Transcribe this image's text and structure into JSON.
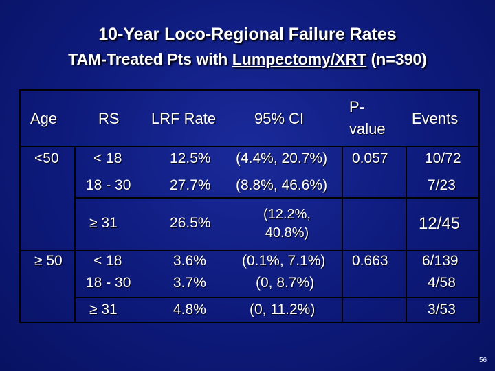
{
  "title": {
    "line1": "10-Year Loco-Regional Failure Rates",
    "line2_prefix": "TAM-Treated Pts with ",
    "line2_underlined": "Lumpectomy/XRT",
    "line2_suffix": " (n=390)"
  },
  "table": {
    "headers": {
      "age": "Age",
      "rs": "RS",
      "lrf_rate": "LRF Rate",
      "ci": "95% CI",
      "p_value_line1": "P-",
      "p_value_line2": "value",
      "events": "Events"
    },
    "groups": [
      {
        "age": "<50",
        "p_value": "0.057",
        "rows": [
          {
            "rs": "< 18",
            "lrf_rate": "12.5%",
            "ci": "(4.4%, 20.7%)",
            "events": "10/72"
          },
          {
            "rs": "18 - 30",
            "lrf_rate": "27.7%",
            "ci": "(8.8%, 46.6%)",
            "events": "7/23"
          },
          {
            "rs": "≥ 31",
            "lrf_rate": "26.5%",
            "ci_line1": "(12.2%,",
            "ci_line2": "40.8%)",
            "events": "12/45"
          }
        ]
      },
      {
        "age": "≥ 50",
        "p_value": "0.663",
        "rows": [
          {
            "rs": "< 18",
            "lrf_rate": "3.6%",
            "ci": "(0.1%, 7.1%)",
            "events": "6/139"
          },
          {
            "rs": "18 - 30",
            "lrf_rate": "3.7%",
            "ci": "(0, 8.7%)",
            "events": "4/58"
          },
          {
            "rs": "≥ 31",
            "lrf_rate": "4.8%",
            "ci": "(0, 11.2%)",
            "events": "3/53"
          }
        ]
      }
    ]
  },
  "slide_number": "56"
}
